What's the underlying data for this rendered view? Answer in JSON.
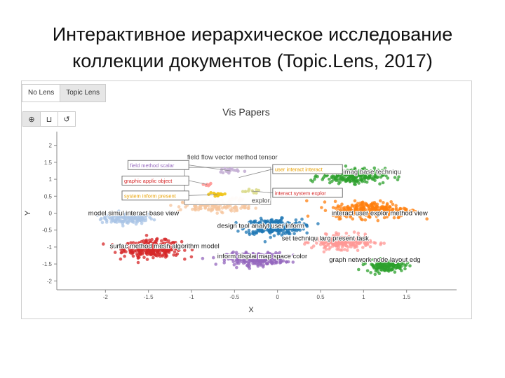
{
  "slide": {
    "title_line1": "Интерактивное иерархическое исследование",
    "title_line2": "коллекции документов (Topic.Lens, 2017)"
  },
  "tabs": [
    {
      "label": "No Lens",
      "active": false
    },
    {
      "label": "Topic Lens",
      "active": true
    }
  ],
  "toolbar": [
    {
      "icon": "zoom-in-icon",
      "glyph": "🔍",
      "active": true
    },
    {
      "icon": "lasso-icon",
      "glyph": "⊔",
      "active": false
    },
    {
      "icon": "reset-icon",
      "glyph": "↺",
      "active": false
    }
  ],
  "chart_data": {
    "type": "scatter",
    "title": "Vis Papers",
    "xlabel": "X",
    "ylabel": "Y",
    "xlim": [
      -2.5,
      2.0
    ],
    "ylim": [
      -2.2,
      2.2
    ],
    "xticks": [
      -2,
      -1.5,
      -1,
      -0.5,
      0,
      0.5,
      1,
      1.5
    ],
    "yticks": [
      2,
      1.5,
      1,
      0.5,
      0,
      -0.5,
      -1,
      -1.5,
      -2
    ],
    "xtick_labels": [
      "-2",
      "-1.5",
      "-1",
      "-0.5",
      "0",
      "0.5",
      "1",
      "1.5"
    ],
    "ytick_labels": [
      "2",
      "1.5",
      "1",
      "0.5",
      "0",
      "-0.5",
      "-1",
      "-1.5",
      "-2"
    ],
    "grid": false,
    "clusters": [
      {
        "label": "model simul interact base view",
        "color": "#a9c4e6",
        "center": [
          -1.75,
          -0.15
        ],
        "spread": [
          0.3,
          0.17
        ],
        "count": 150,
        "label_pos": [
          -2.2,
          0.0
        ]
      },
      {
        "label": "surfac method mesh algorithm model",
        "color": "#d62728",
        "center": [
          -1.45,
          -1.05
        ],
        "spread": [
          0.33,
          0.24
        ],
        "count": 340,
        "label_pos": [
          -1.95,
          -0.97
        ]
      },
      {
        "label": "design tool analyt user inform",
        "color": "#1f77b4",
        "center": [
          -0.05,
          -0.4
        ],
        "spread": [
          0.33,
          0.22
        ],
        "count": 300,
        "label_pos": [
          -0.7,
          -0.37
        ]
      },
      {
        "label": "inform displai map space color",
        "color": "#9467bd",
        "center": [
          -0.25,
          -1.35
        ],
        "spread": [
          0.33,
          0.18
        ],
        "count": 300,
        "label_pos": [
          -0.7,
          -1.27
        ]
      },
      {
        "label": "set techniqu larg present task",
        "color": "#ff9896",
        "center": [
          0.75,
          -0.85
        ],
        "spread": [
          0.33,
          0.2
        ],
        "count": 260,
        "label_pos": [
          0.05,
          -0.74
        ]
      },
      {
        "label": "render imag base techniqu",
        "color": "#2ca02c",
        "center": [
          0.88,
          1.1
        ],
        "spread": [
          0.37,
          0.22
        ],
        "count": 230,
        "label_pos": [
          0.52,
          1.22
        ],
        "light": true
      },
      {
        "label": "interact user explor method view",
        "color": "#ff7f0e",
        "center": [
          1.1,
          0.1
        ],
        "spread": [
          0.45,
          0.25
        ],
        "count": 280,
        "label_pos": [
          0.63,
          0.0
        ]
      },
      {
        "label": "graph network node layout edg",
        "color": "#2ca02c",
        "center": [
          1.25,
          -1.55
        ],
        "spread": [
          0.22,
          0.17
        ],
        "count": 140,
        "label_pos": [
          0.6,
          -1.37
        ]
      },
      {
        "label": "field flow vector method tensor",
        "color": "#f5c49c",
        "center": [
          -0.75,
          0.2
        ],
        "spread": [
          0.4,
          0.18
        ],
        "count": 120,
        "label_pos": [
          -1.05,
          1.65
        ],
        "light": true
      },
      {
        "label": "explor",
        "color": "#f5c49c",
        "center": [
          -0.45,
          0.4
        ],
        "spread": [
          0.1,
          0.05
        ],
        "count": 10,
        "label_pos": [
          -0.3,
          0.37
        ],
        "light": true
      }
    ],
    "lens": {
      "center": [
        -0.58,
        0.8
      ],
      "half_size": [
        0.5,
        0.55
      ],
      "points": [
        {
          "color": "#c5b0d5",
          "center": [
            -0.55,
            1.25
          ],
          "spread": [
            0.12,
            0.08
          ],
          "count": 18
        },
        {
          "color": "#ff9896",
          "center": [
            -0.82,
            0.85
          ],
          "spread": [
            0.08,
            0.06
          ],
          "count": 6
        },
        {
          "color": "#f0c419",
          "center": [
            -0.7,
            0.55
          ],
          "spread": [
            0.1,
            0.08
          ],
          "count": 18
        },
        {
          "color": "#dbdb8d",
          "center": [
            -0.3,
            0.65
          ],
          "spread": [
            0.12,
            0.1
          ],
          "count": 10
        }
      ],
      "callouts": [
        {
          "text": "field method scalar",
          "color": "#9467bd",
          "side": "left",
          "y": 1.42,
          "anchor": [
            -0.55,
            1.25
          ]
        },
        {
          "text": "graphic applic object",
          "color": "#d62728",
          "side": "left",
          "y": 0.96,
          "anchor": [
            -0.82,
            0.85
          ]
        },
        {
          "text": "system inform present",
          "color": "#e8a000",
          "side": "left",
          "y": 0.52,
          "anchor": [
            -0.7,
            0.55
          ]
        },
        {
          "text": "user interact interact",
          "color": "#e8a000",
          "side": "right",
          "y": 1.3,
          "anchor": [
            -0.45,
            1.05
          ]
        },
        {
          "text": "interact system explor",
          "color": "#d62728",
          "side": "right",
          "y": 0.6,
          "anchor": [
            -0.3,
            0.65
          ]
        }
      ]
    }
  }
}
